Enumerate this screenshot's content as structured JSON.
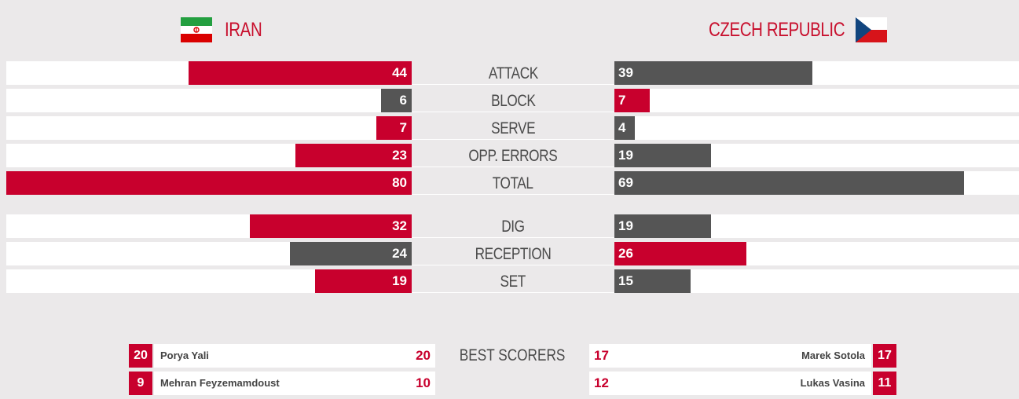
{
  "teams": {
    "home": {
      "name": "IRAN",
      "flag_icon": "iran-flag-icon"
    },
    "away": {
      "name": "CZECH REPUBLIC",
      "flag_icon": "czech-flag-icon"
    }
  },
  "colors": {
    "highlight": "#c8002d",
    "neutral": "#555555",
    "track": "#ffffff"
  },
  "stats": {
    "max": 80,
    "rows": [
      {
        "label": "ATTACK",
        "home": 44,
        "away": 39,
        "home_color": "red",
        "away_color": "gray"
      },
      {
        "label": "BLOCK",
        "home": 6,
        "away": 7,
        "home_color": "gray",
        "away_color": "red"
      },
      {
        "label": "SERVE",
        "home": 7,
        "away": 4,
        "home_color": "red",
        "away_color": "gray"
      },
      {
        "label": "OPP. ERRORS",
        "home": 23,
        "away": 19,
        "home_color": "red",
        "away_color": "gray"
      },
      {
        "label": "TOTAL",
        "home": 80,
        "away": 69,
        "home_color": "red",
        "away_color": "gray"
      },
      {
        "label": "DIG",
        "home": 32,
        "away": 19,
        "home_color": "red",
        "away_color": "gray"
      },
      {
        "label": "RECEPTION",
        "home": 24,
        "away": 26,
        "home_color": "gray",
        "away_color": "red"
      },
      {
        "label": "SET",
        "home": 19,
        "away": 15,
        "home_color": "red",
        "away_color": "gray"
      }
    ]
  },
  "best_scorers": {
    "label": "BEST SCORERS",
    "home": [
      {
        "rank": "20",
        "name": "Porya Yali",
        "points": "20"
      },
      {
        "rank": "9",
        "name": "Mehran Feyzemamdoust",
        "points": "10"
      }
    ],
    "away": [
      {
        "rank": "17",
        "name": "Marek Sotola",
        "points": "17"
      },
      {
        "rank": "11",
        "name": "Lukas Vasina",
        "points": "12"
      }
    ]
  }
}
